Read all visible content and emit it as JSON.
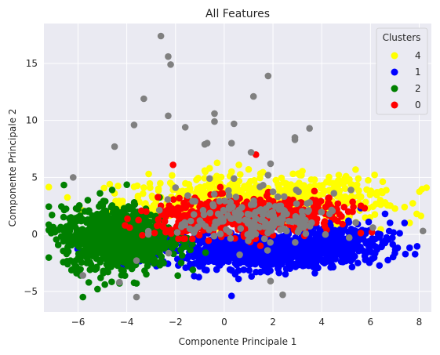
{
  "chart_data": {
    "type": "scatter",
    "title": "All Features",
    "xlabel": "Componente Principale 1",
    "ylabel": "Componente Principale 2",
    "xlim": [
      -7.4,
      8.5
    ],
    "ylim": [
      -6.8,
      18.5
    ],
    "xticks": [
      -6,
      -4,
      -2,
      0,
      2,
      4,
      6,
      8
    ],
    "yticks": [
      -5,
      0,
      5,
      10,
      15
    ],
    "grid": true,
    "legend": {
      "title": "Clusters",
      "placement": "top-right",
      "entries": [
        {
          "label": "4",
          "color": "#ffff00"
        },
        {
          "label": "1",
          "color": "#0000ff"
        },
        {
          "label": "2",
          "color": "#008000"
        },
        {
          "label": "0",
          "color": "#ff0000"
        }
      ]
    },
    "series": [
      {
        "color": "#ffff00",
        "clusters": [
          {
            "cx": 0.8,
            "cy": 3.0,
            "sx": 2.5,
            "sy": 1.0,
            "n": 450
          },
          {
            "cx": 4.5,
            "cy": 3.3,
            "sx": 1.5,
            "sy": 1.0,
            "n": 120
          }
        ],
        "points": [
          [
            -4.7,
            4.4
          ],
          [
            -3.3,
            4.1
          ],
          [
            -3.1,
            5.3
          ],
          [
            -2.7,
            4.0
          ],
          [
            -0.8,
            5.6
          ],
          [
            -0.6,
            5.8
          ],
          [
            0.3,
            5.5
          ],
          [
            0.6,
            6.1
          ],
          [
            1.0,
            5.7
          ],
          [
            3.1,
            5.2
          ],
          [
            4.7,
            5.2
          ],
          [
            5.0,
            5.1
          ],
          [
            5.5,
            4.9
          ],
          [
            4.2,
            4.6
          ],
          [
            6.2,
            3.6
          ],
          [
            6.6,
            2.8
          ],
          [
            7.4,
            2.4
          ],
          [
            7.9,
            1.8
          ],
          [
            5.9,
            2.3
          ],
          [
            5.2,
            3.1
          ],
          [
            -4.5,
            3.6
          ],
          [
            -2.1,
            3.9
          ],
          [
            2.5,
            4.5
          ]
        ]
      },
      {
        "color": "#0000ff",
        "clusters": [
          {
            "cx": 1.5,
            "cy": -1.4,
            "sx": 2.0,
            "sy": 0.8,
            "n": 900
          },
          {
            "cx": 4.2,
            "cy": -0.8,
            "sx": 1.3,
            "sy": 0.9,
            "n": 200
          }
        ],
        "points": [
          [
            0.3,
            -5.4
          ],
          [
            5.6,
            2.3
          ],
          [
            6.6,
            1.8
          ],
          [
            7.4,
            1.0
          ],
          [
            6.2,
            -0.4
          ],
          [
            5.8,
            0.3
          ],
          [
            6.9,
            -0.3
          ],
          [
            5.1,
            1.2
          ],
          [
            6.4,
            0.0
          ],
          [
            4.8,
            -2.4
          ],
          [
            2.7,
            -3.0
          ],
          [
            -0.8,
            -3.1
          ],
          [
            -1.4,
            -2.6
          ],
          [
            5.5,
            -1.0
          ],
          [
            7.2,
            0.1
          ]
        ]
      },
      {
        "color": "#008000",
        "clusters": [
          {
            "cx": -4.4,
            "cy": -0.3,
            "sx": 1.1,
            "sy": 1.3,
            "n": 1000
          }
        ],
        "points": [
          [
            -6.3,
            1.2
          ],
          [
            -6.6,
            -0.6
          ],
          [
            -6.1,
            -2.3
          ],
          [
            -5.9,
            -3.6
          ],
          [
            -5.8,
            -5.5
          ],
          [
            -5.2,
            -4.8
          ],
          [
            -4.9,
            -4.4
          ],
          [
            -5.6,
            3.0
          ],
          [
            -5.1,
            3.6
          ],
          [
            -4.6,
            3.9
          ],
          [
            -6.0,
            2.2
          ],
          [
            -3.6,
            -4.3
          ],
          [
            -3.2,
            -3.5
          ],
          [
            -6.8,
            0.4
          ],
          [
            -6.4,
            -1.5
          ]
        ]
      },
      {
        "color": "#ff0000",
        "clusters": [
          {
            "cx": 0.5,
            "cy": 1.5,
            "sx": 1.6,
            "sy": 0.8,
            "n": 500
          },
          {
            "cx": 3.5,
            "cy": 2.0,
            "sx": 1.0,
            "sy": 0.6,
            "n": 80
          }
        ],
        "points": [
          [
            1.3,
            7.0
          ],
          [
            -2.1,
            6.1
          ],
          [
            -2.6,
            2.5
          ],
          [
            -3.2,
            2.0
          ],
          [
            3.7,
            3.8
          ],
          [
            4.3,
            3.2
          ],
          [
            5.3,
            2.4
          ],
          [
            4.5,
            2.0
          ],
          [
            0.8,
            0.0
          ],
          [
            1.5,
            0.4
          ],
          [
            -2.4,
            0.2
          ]
        ]
      },
      {
        "color": "#808080",
        "clusters": [
          {
            "cx": 1.3,
            "cy": 1.3,
            "sx": 1.6,
            "sy": 1.1,
            "n": 180
          }
        ],
        "points": [
          [
            -2.6,
            17.4
          ],
          [
            -2.3,
            15.6
          ],
          [
            -2.2,
            14.9
          ],
          [
            -3.3,
            11.9
          ],
          [
            1.8,
            13.9
          ],
          [
            1.2,
            12.1
          ],
          [
            -3.7,
            9.6
          ],
          [
            -2.3,
            10.4
          ],
          [
            -1.6,
            9.4
          ],
          [
            -0.4,
            10.6
          ],
          [
            -0.4,
            9.9
          ],
          [
            0.4,
            9.7
          ],
          [
            3.5,
            9.3
          ],
          [
            2.9,
            8.3
          ],
          [
            2.9,
            8.5
          ],
          [
            -0.8,
            7.9
          ],
          [
            -0.7,
            8.0
          ],
          [
            0.3,
            8.0
          ],
          [
            1.1,
            7.2
          ],
          [
            -4.5,
            7.7
          ],
          [
            -6.2,
            5.0
          ],
          [
            1.9,
            6.2
          ],
          [
            -0.6,
            4.9
          ],
          [
            0.4,
            4.9
          ],
          [
            1.8,
            5.2
          ],
          [
            -3.6,
            -2.3
          ],
          [
            -5.8,
            -3.6
          ],
          [
            -4.3,
            -4.2
          ],
          [
            -3.6,
            -5.5
          ],
          [
            2.4,
            -5.3
          ],
          [
            1.9,
            -4.1
          ],
          [
            -2.0,
            4.1
          ],
          [
            5.2,
            3.9
          ],
          [
            6.1,
            0.6
          ],
          [
            3.5,
            2.8
          ],
          [
            4.5,
            3.6
          ],
          [
            -1.2,
            2.9
          ],
          [
            0.2,
            3.4
          ],
          [
            2.2,
            3.3
          ],
          [
            3.3,
            1.0
          ]
        ]
      }
    ]
  }
}
